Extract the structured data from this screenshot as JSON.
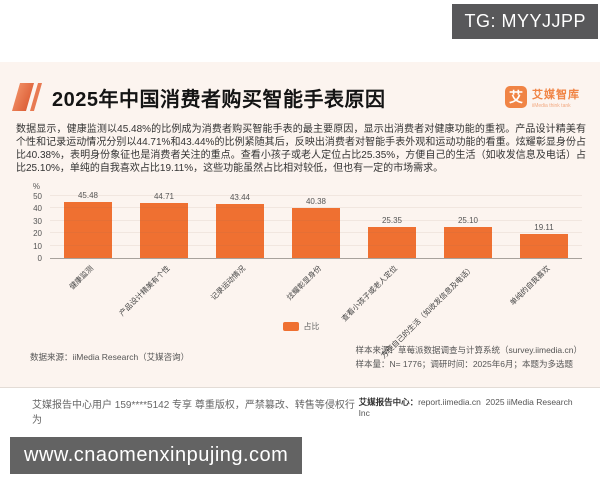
{
  "badges": {
    "tg": "TG: MYYJJPP",
    "watermark": "www.cnaomenxinpujing.com"
  },
  "header": {
    "title": "2025年中国消费者购买智能手表原因",
    "logo": {
      "glyph": "艾",
      "name_cn": "艾媒智库",
      "name_en": "iiMedia think tank"
    }
  },
  "body_text": "数据显示，健康监测以45.48%的比例成为消费者购买智能手表的最主要原因，显示出消费者对健康功能的重视。产品设计精美有个性和记录运动情况分别以44.71%和43.44%的比例紧随其后，反映出消费者对智能手表外观和运动功能的看重。炫耀彰显身份占比40.38%，表明身份象征也是消费者关注的重点。查看小孩子或老人定位占比25.35%，方便自己的生活（如收发信息及电话）占比25.10%，单纯的自我喜欢占比19.11%，这些功能虽然占比相对较低，但也有一定的市场需求。",
  "chart_data": {
    "type": "bar",
    "title": "2025年中国消费者购买智能手表原因",
    "categories": [
      "健康监测",
      "产品设计精美有个性",
      "记录运动情况",
      "炫耀彰显身份",
      "查看小孩子或老人定位",
      "方便自己的生活（如收发信息及电话）",
      "单纯的自我喜欢"
    ],
    "values": [
      45.48,
      44.71,
      43.44,
      40.38,
      25.35,
      25.1,
      19.11
    ],
    "value_labels": [
      "45.48",
      "44.71",
      "43.44",
      "40.38",
      "25.35",
      "25.10",
      "19.11"
    ],
    "ylabel": "%",
    "xlabel": "",
    "yticks": [
      0,
      10,
      20,
      30,
      40,
      50
    ],
    "ylim": [
      0,
      50
    ],
    "legend": [
      "占比"
    ],
    "legend_position": "bottom",
    "grid": true,
    "bar_color": "#ef7031"
  },
  "sources": {
    "data_source": "数据来源：iiMedia Research（艾媒咨询）",
    "sample_source": "样本来源：草莓派数据调查与计算系统（survey.iimedia.cn）",
    "sample_size": "样本量：N= 1776；调研时间：2025年6月；本题为多选题"
  },
  "footer": {
    "left": "艾媒报告中心用户 159****5142 专享 尊重版权，严禁篡改、转售等侵权行为",
    "right_label": "艾媒报告中心：",
    "right_url": "report.iimedia.cn",
    "right_company": "2025 iiMedia Research Inc"
  },
  "colors": {
    "accent": "#ef7031",
    "card_background": "#fcf4ef",
    "badge_background": "#58585a",
    "logo_orange": "#f08445"
  }
}
